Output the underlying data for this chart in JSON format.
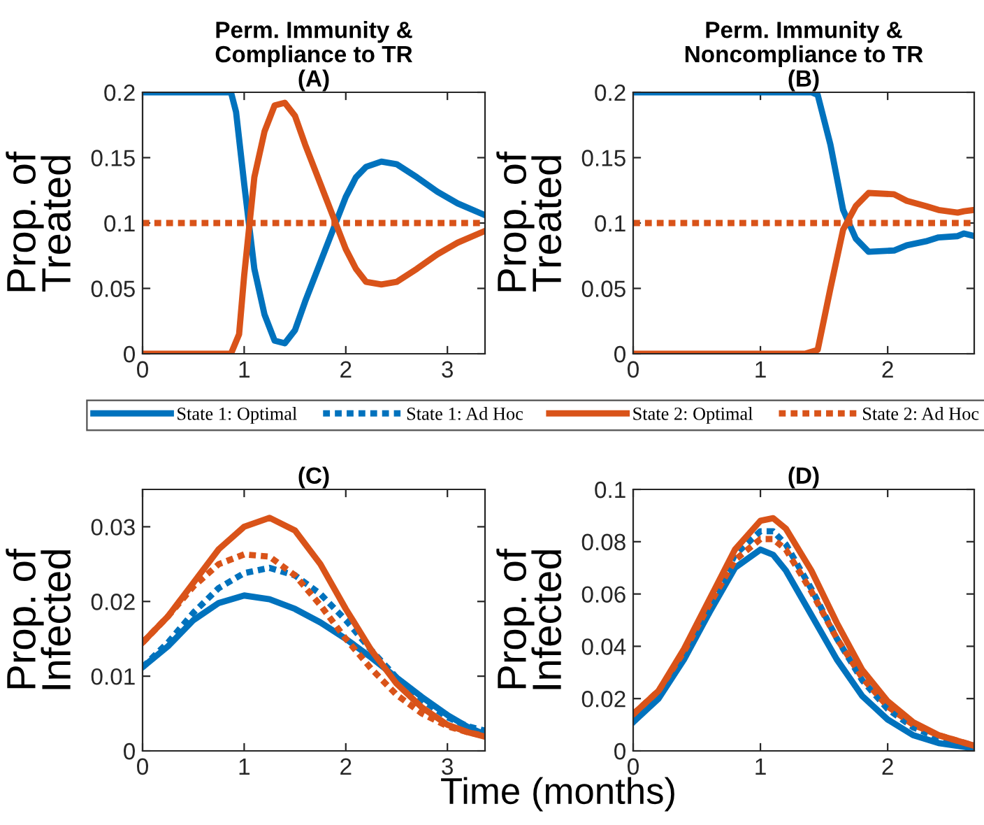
{
  "chart_data": [
    {
      "type": "line",
      "title": "Perm. Immunity &\nCompliance to TR\n(A)",
      "ylabel": "Prop. of\nTreated",
      "xlim": [
        0,
        3.37
      ],
      "xticks": [
        0,
        1,
        2,
        3
      ],
      "ylim": [
        0,
        0.2
      ],
      "yticks": [
        0,
        0.05,
        0.1,
        0.15,
        0.2
      ],
      "grid": false,
      "legend": false,
      "series": [
        {
          "color": "#0072bd",
          "line_style": "solid",
          "x": [
            0,
            0.3,
            0.6,
            0.87,
            0.92,
            1.0,
            1.1,
            1.2,
            1.3,
            1.4,
            1.5,
            1.6,
            1.8,
            1.9,
            2.0,
            2.1,
            2.2,
            2.35,
            2.5,
            2.7,
            2.9,
            3.1,
            3.37
          ],
          "values": [
            0.2,
            0.2,
            0.2,
            0.2,
            0.185,
            0.13,
            0.065,
            0.03,
            0.01,
            0.008,
            0.018,
            0.04,
            0.08,
            0.1,
            0.12,
            0.135,
            0.143,
            0.147,
            0.145,
            0.135,
            0.124,
            0.115,
            0.106
          ]
        },
        {
          "color": "#d95319",
          "line_style": "solid",
          "x": [
            0,
            0.3,
            0.6,
            0.87,
            0.95,
            1.0,
            1.1,
            1.2,
            1.3,
            1.4,
            1.5,
            1.6,
            1.8,
            1.9,
            2.0,
            2.1,
            2.2,
            2.35,
            2.5,
            2.7,
            2.9,
            3.1,
            3.37
          ],
          "values": [
            0,
            0,
            0,
            0,
            0.015,
            0.06,
            0.135,
            0.17,
            0.19,
            0.192,
            0.182,
            0.16,
            0.12,
            0.1,
            0.08,
            0.065,
            0.055,
            0.053,
            0.055,
            0.065,
            0.076,
            0.085,
            0.094
          ]
        },
        {
          "color": "#d95319",
          "line_style": "dotted",
          "x": [
            0,
            3.37
          ],
          "values": [
            0.1,
            0.1
          ]
        }
      ]
    },
    {
      "type": "line",
      "title": "Perm. Immunity &\nNoncompliance to TR\n(B)",
      "ylabel": "Prop. of\nTreated",
      "xlim": [
        0,
        2.68
      ],
      "xticks": [
        0,
        1,
        2
      ],
      "ylim": [
        0,
        0.2
      ],
      "yticks": [
        0,
        0.05,
        0.1,
        0.15,
        0.2
      ],
      "grid": false,
      "legend": false,
      "series": [
        {
          "color": "#0072bd",
          "line_style": "solid",
          "x": [
            0,
            0.5,
            1.0,
            1.4,
            1.45,
            1.55,
            1.65,
            1.75,
            1.85,
            2.05,
            2.15,
            2.3,
            2.4,
            2.55,
            2.6,
            2.68
          ],
          "values": [
            0.2,
            0.2,
            0.2,
            0.2,
            0.198,
            0.16,
            0.11,
            0.088,
            0.078,
            0.079,
            0.083,
            0.086,
            0.089,
            0.09,
            0.092,
            0.09
          ]
        },
        {
          "color": "#d95319",
          "line_style": "solid",
          "x": [
            0,
            0.5,
            1.0,
            1.35,
            1.45,
            1.55,
            1.65,
            1.75,
            1.85,
            2.05,
            2.15,
            2.3,
            2.4,
            2.55,
            2.6,
            2.68
          ],
          "values": [
            0,
            0,
            0,
            0,
            0.003,
            0.05,
            0.095,
            0.113,
            0.123,
            0.122,
            0.117,
            0.113,
            0.11,
            0.108,
            0.109,
            0.11
          ]
        },
        {
          "color": "#d95319",
          "line_style": "dotted",
          "x": [
            0,
            2.68
          ],
          "values": [
            0.1,
            0.1
          ]
        }
      ]
    },
    {
      "type": "line",
      "title": "(C)",
      "ylabel": "Prop. of\nInfected",
      "xlabel": "Time (months)",
      "xlim": [
        0,
        3.37
      ],
      "xticks": [
        0,
        1,
        2,
        3
      ],
      "ylim": [
        0,
        0.035
      ],
      "yticks": [
        0,
        0.01,
        0.02,
        0.03
      ],
      "grid": false,
      "legend": "top",
      "x": [
        0,
        0.25,
        0.5,
        0.75,
        1.0,
        1.25,
        1.5,
        1.75,
        2.0,
        2.25,
        2.5,
        2.75,
        3.0,
        3.2,
        3.37
      ],
      "series": [
        {
          "name": "State 1: Optimal",
          "color": "#0072bd",
          "line_style": "solid",
          "values": [
            0.0112,
            0.014,
            0.0175,
            0.0198,
            0.0208,
            0.0203,
            0.019,
            0.0172,
            0.015,
            0.0125,
            0.0098,
            0.0072,
            0.0048,
            0.0032,
            0.0022
          ]
        },
        {
          "name": "State 1: Ad Hoc",
          "color": "#0072bd",
          "line_style": "dotted",
          "values": [
            0.0112,
            0.0145,
            0.0185,
            0.0218,
            0.0238,
            0.0245,
            0.0235,
            0.021,
            0.0175,
            0.0135,
            0.0098,
            0.0068,
            0.0045,
            0.0033,
            0.0027
          ]
        },
        {
          "name": "State 2: Optimal",
          "color": "#d95319",
          "line_style": "solid",
          "values": [
            0.0145,
            0.018,
            0.0225,
            0.027,
            0.03,
            0.0312,
            0.0295,
            0.025,
            0.019,
            0.0135,
            0.009,
            0.0058,
            0.0035,
            0.0025,
            0.0019
          ]
        },
        {
          "name": "State 2: Ad Hoc",
          "color": "#d95319",
          "line_style": "dotted",
          "values": [
            0.0145,
            0.018,
            0.022,
            0.025,
            0.0263,
            0.026,
            0.0235,
            0.0195,
            0.015,
            0.011,
            0.0075,
            0.005,
            0.0033,
            0.0025,
            0.002
          ]
        }
      ]
    },
    {
      "type": "line",
      "title": "(D)",
      "ylabel": "Prop. of\nInfected",
      "xlim": [
        0,
        2.68
      ],
      "xticks": [
        0,
        1,
        2
      ],
      "ylim": [
        0,
        0.1
      ],
      "yticks": [
        0,
        0.02,
        0.04,
        0.06,
        0.08,
        0.1
      ],
      "grid": false,
      "legend": false,
      "x": [
        0,
        0.2,
        0.4,
        0.6,
        0.8,
        1.0,
        1.1,
        1.2,
        1.4,
        1.6,
        1.8,
        2.0,
        2.2,
        2.4,
        2.68
      ],
      "series": [
        {
          "color": "#0072bd",
          "line_style": "solid",
          "values": [
            0.011,
            0.02,
            0.035,
            0.053,
            0.07,
            0.077,
            0.075,
            0.069,
            0.052,
            0.035,
            0.021,
            0.012,
            0.006,
            0.003,
            0.001
          ]
        },
        {
          "color": "#0072bd",
          "line_style": "dotted",
          "values": [
            0.012,
            0.021,
            0.037,
            0.056,
            0.075,
            0.084,
            0.084,
            0.079,
            0.062,
            0.043,
            0.027,
            0.016,
            0.009,
            0.005,
            0.002
          ]
        },
        {
          "color": "#d95319",
          "line_style": "solid",
          "values": [
            0.014,
            0.023,
            0.039,
            0.058,
            0.077,
            0.088,
            0.089,
            0.085,
            0.069,
            0.049,
            0.031,
            0.019,
            0.011,
            0.006,
            0.002
          ]
        },
        {
          "color": "#d95319",
          "line_style": "dotted",
          "values": [
            0.014,
            0.023,
            0.038,
            0.056,
            0.073,
            0.081,
            0.081,
            0.077,
            0.061,
            0.043,
            0.028,
            0.017,
            0.01,
            0.006,
            0.002
          ]
        }
      ]
    }
  ]
}
